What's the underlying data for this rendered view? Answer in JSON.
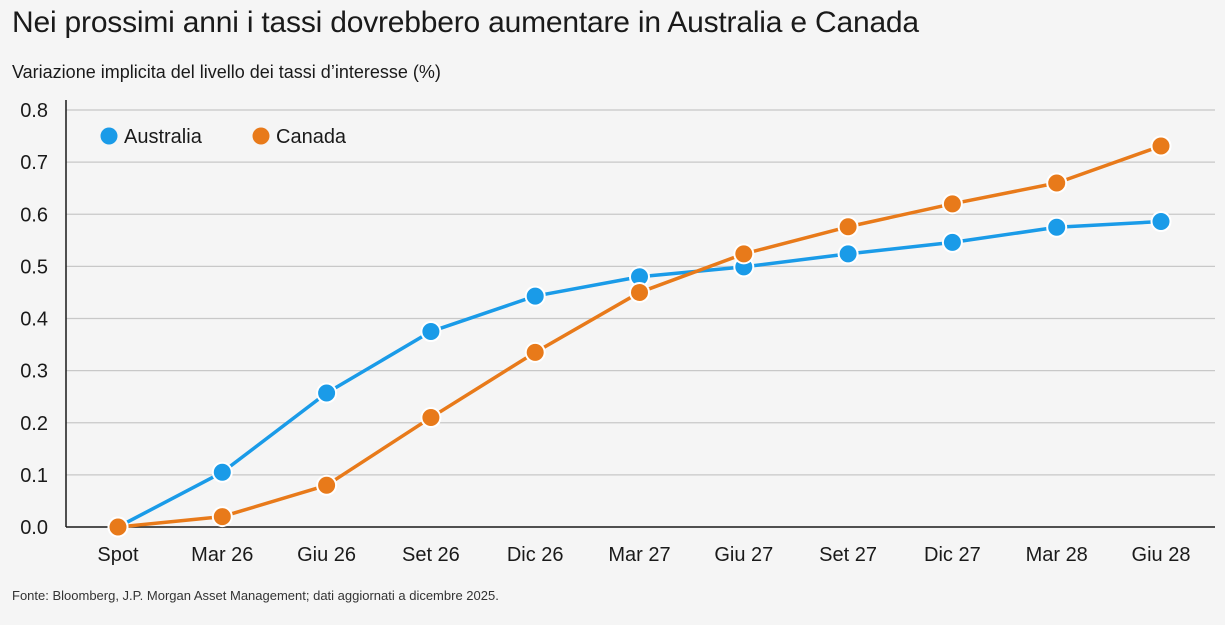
{
  "header": {
    "title": "Nei prossimi anni i tassi dovrebbero aumentare in Australia e Canada",
    "subtitle": "Variazione implicita del livello dei tassi d’interesse (%)"
  },
  "footer": {
    "source": "Fonte: Bloomberg, J.P. Morgan Asset Management; dati aggiornati a dicembre 2025."
  },
  "colors": {
    "australia": "#1a9be8",
    "canada": "#e87a1a",
    "grid": "#c8c8c8",
    "axis": "#1a1a1a"
  },
  "chart_data": {
    "type": "line",
    "title": "Nei prossimi anni i tassi dovrebbero aumentare in Australia e Canada",
    "ylabel": "Variazione implicita del livello dei tassi d’interesse (%)",
    "xlabel": "",
    "categories": [
      "Spot",
      "Mar 26",
      "Giu 26",
      "Set 26",
      "Dic 26",
      "Mar 27",
      "Giu 27",
      "Set 27",
      "Dic 27",
      "Mar 28",
      "Giu 28"
    ],
    "ylim": [
      0,
      0.8
    ],
    "yticks": [
      "0.0",
      "0.1",
      "0.2",
      "0.3",
      "0.4",
      "0.5",
      "0.6",
      "0.7",
      "0.8"
    ],
    "grid": true,
    "legend_position": "top-left",
    "series": [
      {
        "name": "Australia",
        "color": "#1a9be8",
        "values": [
          0.0,
          0.105,
          0.257,
          0.375,
          0.443,
          0.48,
          0.499,
          0.524,
          0.546,
          0.575,
          0.586
        ]
      },
      {
        "name": "Canada",
        "color": "#e87a1a",
        "values": [
          0.0,
          0.02,
          0.08,
          0.21,
          0.335,
          0.45,
          0.524,
          0.576,
          0.62,
          0.66,
          0.731
        ]
      }
    ]
  }
}
